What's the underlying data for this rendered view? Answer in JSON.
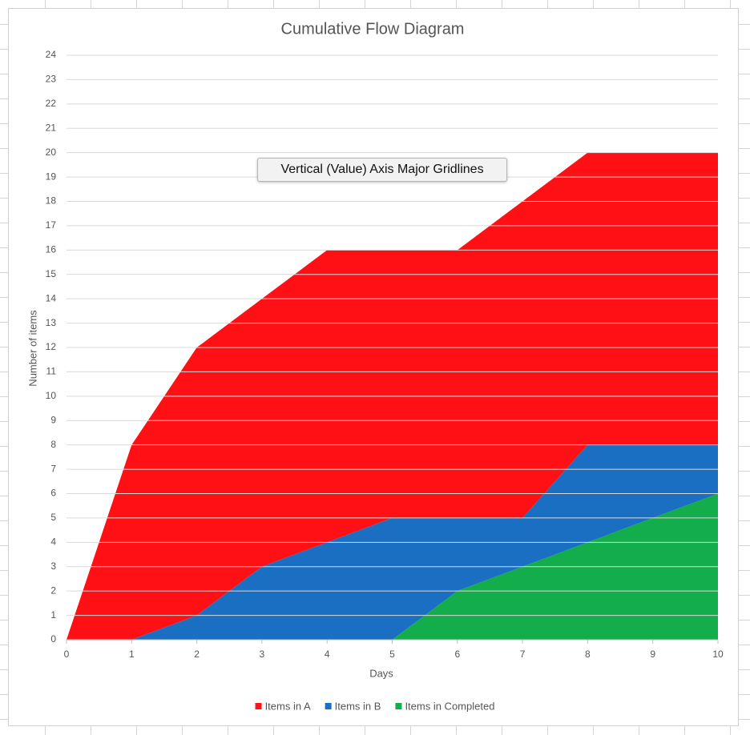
{
  "chart_data": {
    "type": "area",
    "stacked": true,
    "title": "Cumulative Flow Diagram",
    "x_label": "Days",
    "y_label": "Number of items",
    "tooltip": "Vertical (Value) Axis Major Gridlines",
    "x": [
      0,
      1,
      2,
      3,
      4,
      5,
      6,
      7,
      8,
      9,
      10
    ],
    "series": [
      {
        "name": "Items in A",
        "color": "#ff1015",
        "values": [
          0,
          8,
          11,
          11,
          12,
          11,
          11,
          13,
          12,
          12,
          12
        ]
      },
      {
        "name": "Items in B",
        "color": "#1a6fc2",
        "values": [
          0,
          0,
          1,
          3,
          4,
          5,
          3,
          2,
          4,
          3,
          2
        ]
      },
      {
        "name": "Items in Completed",
        "color": "#14ad4b",
        "values": [
          0,
          0,
          0,
          0,
          0,
          0,
          2,
          3,
          4,
          5,
          6
        ]
      }
    ],
    "xlim": [
      0,
      10
    ],
    "xticks": [
      0,
      1,
      2,
      3,
      4,
      5,
      6,
      7,
      8,
      9,
      10
    ],
    "ylim": [
      0,
      24
    ],
    "yticks": [
      0,
      1,
      2,
      3,
      4,
      5,
      6,
      7,
      8,
      9,
      10,
      11,
      12,
      13,
      14,
      15,
      16,
      17,
      18,
      19,
      20,
      21,
      22,
      23,
      24
    ],
    "grid": true,
    "legend": "bottom"
  }
}
